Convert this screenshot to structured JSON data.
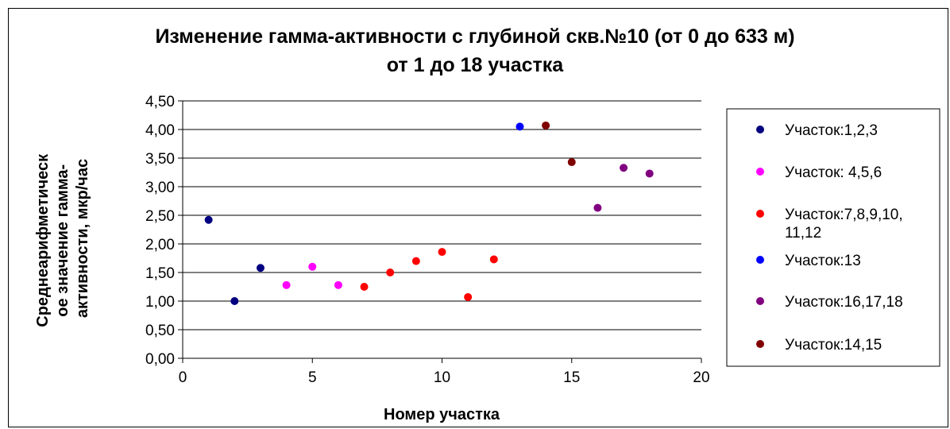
{
  "chart_data": {
    "type": "scatter",
    "title": [
      "Изменение гамма-активности с глубиной скв.№10 (от 0 до 633 м)",
      "от 1 до 18 участка"
    ],
    "xlabel": "Номер участка",
    "ylabel": [
      "Среднеарифметическ",
      "ое значение гамма-",
      "активности, мкр/час"
    ],
    "xlim": [
      0,
      20
    ],
    "ylim": [
      0,
      4.5
    ],
    "x_ticks": [
      "0",
      "5",
      "10",
      "15",
      "20"
    ],
    "y_ticks": [
      "0,00",
      "0,50",
      "1,00",
      "1,50",
      "2,00",
      "2,50",
      "3,00",
      "3,50",
      "4,00",
      "4,50"
    ],
    "grid": true,
    "legend_position": "right",
    "series": [
      {
        "name": [
          "Участок:1,2,3"
        ],
        "color": "#000080",
        "points": [
          [
            1,
            2.42
          ],
          [
            2,
            1.0
          ],
          [
            3,
            1.58
          ]
        ]
      },
      {
        "name": [
          "Участок: 4,5,6"
        ],
        "color": "#ff00ff",
        "points": [
          [
            4,
            1.28
          ],
          [
            5,
            1.6
          ],
          [
            6,
            1.28
          ]
        ]
      },
      {
        "name": [
          "Участок:7,8,9,10,",
          "11,12"
        ],
        "color": "#ff0000",
        "points": [
          [
            7,
            1.25
          ],
          [
            8,
            1.5
          ],
          [
            9,
            1.7
          ],
          [
            10,
            1.86
          ],
          [
            11,
            1.07
          ],
          [
            12,
            1.73
          ]
        ]
      },
      {
        "name": [
          "Участок:13"
        ],
        "color": "#0000ff",
        "points": [
          [
            13,
            4.05
          ]
        ]
      },
      {
        "name": [
          "Участок:16,17,18"
        ],
        "color": "#800080",
        "points": [
          [
            16,
            2.63
          ],
          [
            17,
            3.33
          ],
          [
            18,
            3.23
          ]
        ]
      },
      {
        "name": [
          "Участок:14,15"
        ],
        "color": "#800000",
        "points": [
          [
            14,
            4.07
          ],
          [
            15,
            3.43
          ]
        ]
      }
    ]
  }
}
